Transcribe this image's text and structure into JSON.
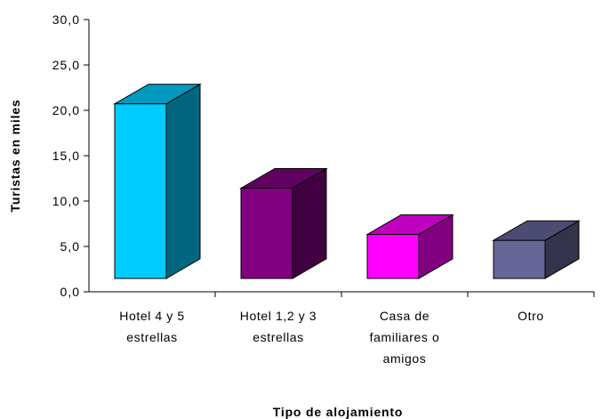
{
  "chart_data": {
    "type": "bar",
    "style": "3d-column",
    "categories": [
      [
        "Hotel 4 y 5",
        "estrellas"
      ],
      [
        "Hotel 1,2 y 3",
        "estrellas"
      ],
      [
        "Casa de",
        "familiares o",
        "amigos"
      ],
      [
        "Otro"
      ]
    ],
    "values": [
      23.4,
      12.1,
      5.9,
      5.1
    ],
    "xlabel": "Tipo de alojamiento",
    "ylabel": "Turistas en miles",
    "ylim": [
      0,
      30
    ],
    "yticks": [
      "0,0",
      "5,0",
      "10,0",
      "15,0",
      "20,0",
      "25,0",
      "30,0"
    ],
    "grid": false,
    "legend": "none",
    "colors": [
      {
        "front": "#00ccff",
        "side": "#006680",
        "top": "#0099bf"
      },
      {
        "front": "#800080",
        "side": "#400040",
        "top": "#600060"
      },
      {
        "front": "#ff00ff",
        "side": "#800080",
        "top": "#bf00bf"
      },
      {
        "front": "#666699",
        "side": "#33334c",
        "top": "#4c4c73"
      }
    ]
  }
}
